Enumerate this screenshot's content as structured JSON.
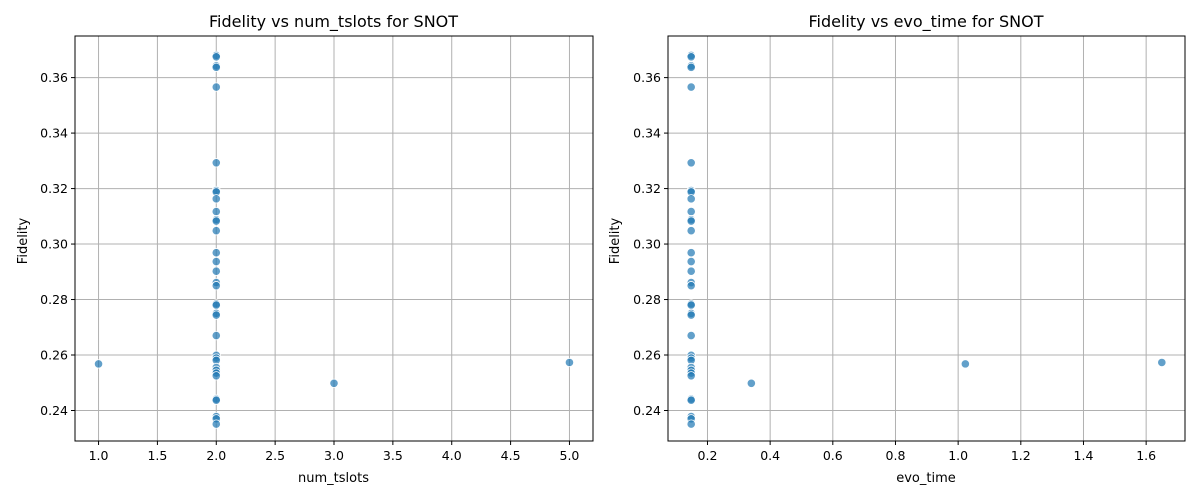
{
  "chart_data": [
    {
      "type": "scatter",
      "title": "Fidelity vs num_tslots for SNOT",
      "xlabel": "num_tslots",
      "ylabel": "Fidelity",
      "xlim": [
        0.8,
        5.2
      ],
      "ylim": [
        0.229,
        0.375
      ],
      "xticks": [
        "1.0",
        "1.5",
        "2.0",
        "2.5",
        "3.0",
        "3.5",
        "4.0",
        "4.5",
        "5.0"
      ],
      "yticks": [
        "0.24",
        "0.26",
        "0.28",
        "0.30",
        "0.32",
        "0.34",
        "0.36"
      ],
      "grid": true,
      "color": "#1f77b4",
      "points": [
        {
          "x": 2,
          "y": 0.368
        },
        {
          "x": 2,
          "y": 0.3675
        },
        {
          "x": 2,
          "y": 0.3642
        },
        {
          "x": 2,
          "y": 0.3637
        },
        {
          "x": 2,
          "y": 0.3566
        },
        {
          "x": 2,
          "y": 0.3293
        },
        {
          "x": 2,
          "y": 0.3193
        },
        {
          "x": 2,
          "y": 0.3188
        },
        {
          "x": 2,
          "y": 0.3163
        },
        {
          "x": 2,
          "y": 0.3117
        },
        {
          "x": 2,
          "y": 0.3088
        },
        {
          "x": 2,
          "y": 0.3083
        },
        {
          "x": 2,
          "y": 0.3048
        },
        {
          "x": 2,
          "y": 0.2969
        },
        {
          "x": 2,
          "y": 0.2937
        },
        {
          "x": 2,
          "y": 0.2902
        },
        {
          "x": 2,
          "y": 0.2861
        },
        {
          "x": 2,
          "y": 0.285
        },
        {
          "x": 2,
          "y": 0.2784
        },
        {
          "x": 2,
          "y": 0.278
        },
        {
          "x": 2,
          "y": 0.275
        },
        {
          "x": 2,
          "y": 0.2744
        },
        {
          "x": 2,
          "y": 0.267
        },
        {
          "x": 2,
          "y": 0.2599
        },
        {
          "x": 2,
          "y": 0.2589
        },
        {
          "x": 2,
          "y": 0.2581
        },
        {
          "x": 2,
          "y": 0.2555
        },
        {
          "x": 2,
          "y": 0.2545
        },
        {
          "x": 2,
          "y": 0.2535
        },
        {
          "x": 2,
          "y": 0.2525
        },
        {
          "x": 2,
          "y": 0.2441
        },
        {
          "x": 2,
          "y": 0.2437
        },
        {
          "x": 2,
          "y": 0.2378
        },
        {
          "x": 2,
          "y": 0.237
        },
        {
          "x": 2,
          "y": 0.2351
        },
        {
          "x": 1,
          "y": 0.2568
        },
        {
          "x": 3,
          "y": 0.2498
        },
        {
          "x": 5,
          "y": 0.2573
        }
      ]
    },
    {
      "type": "scatter",
      "title": "Fidelity vs evo_time for SNOT",
      "xlabel": "evo_time",
      "ylabel": "Fidelity",
      "xlim": [
        0.074,
        1.724
      ],
      "ylim": [
        0.229,
        0.375
      ],
      "xticks": [
        "0.2",
        "0.4",
        "0.6",
        "0.8",
        "1.0",
        "1.2",
        "1.4",
        "1.6"
      ],
      "yticks": [
        "0.24",
        "0.26",
        "0.28",
        "0.30",
        "0.32",
        "0.34",
        "0.36"
      ],
      "grid": true,
      "color": "#1f77b4",
      "points": [
        {
          "x": 0.148,
          "y": 0.368
        },
        {
          "x": 0.148,
          "y": 0.3675
        },
        {
          "x": 0.148,
          "y": 0.3642
        },
        {
          "x": 0.148,
          "y": 0.3637
        },
        {
          "x": 0.148,
          "y": 0.3566
        },
        {
          "x": 0.148,
          "y": 0.3293
        },
        {
          "x": 0.148,
          "y": 0.3193
        },
        {
          "x": 0.148,
          "y": 0.3188
        },
        {
          "x": 0.148,
          "y": 0.3163
        },
        {
          "x": 0.148,
          "y": 0.3117
        },
        {
          "x": 0.148,
          "y": 0.3088
        },
        {
          "x": 0.148,
          "y": 0.3083
        },
        {
          "x": 0.148,
          "y": 0.3048
        },
        {
          "x": 0.148,
          "y": 0.2969
        },
        {
          "x": 0.148,
          "y": 0.2937
        },
        {
          "x": 0.148,
          "y": 0.2902
        },
        {
          "x": 0.148,
          "y": 0.2861
        },
        {
          "x": 0.148,
          "y": 0.285
        },
        {
          "x": 0.148,
          "y": 0.2784
        },
        {
          "x": 0.148,
          "y": 0.278
        },
        {
          "x": 0.148,
          "y": 0.275
        },
        {
          "x": 0.148,
          "y": 0.2744
        },
        {
          "x": 0.148,
          "y": 0.267
        },
        {
          "x": 0.148,
          "y": 0.2599
        },
        {
          "x": 0.148,
          "y": 0.2589
        },
        {
          "x": 0.148,
          "y": 0.2581
        },
        {
          "x": 0.148,
          "y": 0.2555
        },
        {
          "x": 0.148,
          "y": 0.2545
        },
        {
          "x": 0.148,
          "y": 0.2535
        },
        {
          "x": 0.148,
          "y": 0.2525
        },
        {
          "x": 0.148,
          "y": 0.2441
        },
        {
          "x": 0.148,
          "y": 0.2437
        },
        {
          "x": 0.148,
          "y": 0.2378
        },
        {
          "x": 0.148,
          "y": 0.237
        },
        {
          "x": 0.148,
          "y": 0.2351
        },
        {
          "x": 1.023,
          "y": 0.2568
        },
        {
          "x": 0.34,
          "y": 0.2498
        },
        {
          "x": 1.65,
          "y": 0.2573
        }
      ]
    }
  ]
}
